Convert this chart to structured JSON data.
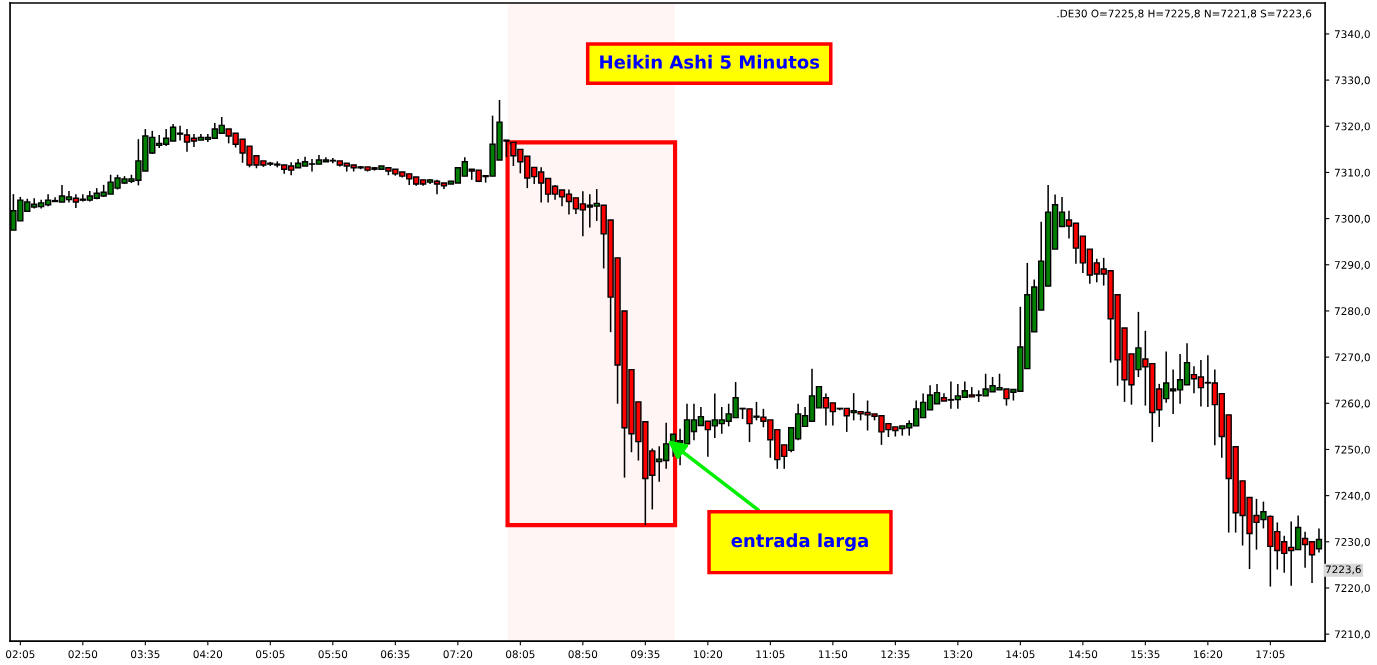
{
  "chart_data": {
    "type": "candlestick",
    "title": "Heikin Ashi 5 Minutos",
    "subtitle": ".DE30 O=7225,8 H=7225,8 N=7221,8 S=7223,6",
    "colors": [
      "#008000",
      "#008000",
      "#008000",
      "#008000",
      "#008000",
      "#008000",
      "#008000",
      "#008000",
      "#008000",
      "#ff0000",
      "#008000",
      "#008000",
      "#008000",
      "#008000",
      "#008000",
      "#008000",
      "#008000",
      "#008000",
      "#008000",
      "#008000",
      "#008000",
      "#008000",
      "#008000",
      "#008000",
      "#008000",
      "#ff0000",
      "#ff0000",
      "#008000",
      "#008000",
      "#008000",
      "#008000",
      "#ff0000",
      "#ff0000",
      "#ff0000",
      "#ff0000",
      "#ff0000",
      "#ff0000",
      "#008000",
      "#ff0000",
      "#ff0000",
      "#ff0000",
      "#008000",
      "#008000",
      "#008000",
      "#008000",
      "#008000",
      "#008000",
      "#ff0000",
      "#ff0000",
      "#ff0000",
      "#ff0000",
      "#ff0000",
      "#ff0000",
      "#008000",
      "#ff0000",
      "#ff0000",
      "#ff0000",
      "#ff0000",
      "#ff0000",
      "#ff0000",
      "#008000",
      "#ff0000",
      "#ff0000",
      "#008000",
      "#008000",
      "#008000",
      "#ff0000",
      "#ff0000",
      "#008000",
      "#008000",
      "#008000",
      "#008000",
      "#ff0000",
      "#ff0000",
      "#ff0000",
      "#ff0000",
      "#ff0000",
      "#ff0000",
      "#ff0000",
      "#ff0000",
      "#ff0000",
      "#ff0000",
      "#ff0000",
      "#008000",
      "#008000",
      "#ff0000",
      "#ff0000",
      "#ff0000",
      "#ff0000",
      "#ff0000",
      "#ff0000",
      "#ff0000",
      "#ff0000",
      "#008000",
      "#008000",
      "#008000",
      "#008000",
      "#008000",
      "#008000",
      "#008000",
      "#ff0000",
      "#008000",
      "#008000",
      "#008000",
      "#008000",
      "#008000",
      "#ff0000",
      "#ff0000",
      "#ff0000",
      "#ff0000",
      "#ff0000",
      "#ff0000",
      "#008000",
      "#008000",
      "#008000",
      "#008000",
      "#008000",
      "#ff0000",
      "#ff0000",
      "#ff0000",
      "#ff0000",
      "#008000",
      "#ff0000",
      "#ff0000",
      "#ff0000",
      "#ff0000",
      "#ff0000",
      "#ff0000",
      "#008000",
      "#008000",
      "#008000",
      "#008000",
      "#008000",
      "#008000",
      "#ff0000",
      "#008000",
      "#008000",
      "#008000",
      "#ff0000",
      "#008000",
      "#008000",
      "#008000",
      "#008000",
      "#ff0000",
      "#008000",
      "#008000",
      "#008000",
      "#008000",
      "#008000",
      "#008000",
      "#008000",
      "#008000",
      "#ff0000",
      "#ff0000",
      "#ff0000",
      "#ff0000",
      "#ff0000",
      "#ff0000",
      "#ff0000",
      "#ff0000",
      "#ff0000",
      "#ff0000",
      "#008000",
      "#ff0000",
      "#ff0000",
      "#ff0000",
      "#008000",
      "#008000",
      "#008000",
      "#008000",
      "#ff0000",
      "#ff0000",
      "#ff0000",
      "#ff0000",
      "#ff0000",
      "#ff0000",
      "#ff0000",
      "#ff0000",
      "#ff0000",
      "#ff0000",
      "#008000",
      "#ff0000",
      "#ff0000",
      "#ff0000",
      "#ff0000",
      "#008000",
      "#ff0000",
      "#ff0000",
      "#008000"
    ],
    "x": [
      2.0,
      2.0833,
      2.1667,
      2.25,
      2.3333,
      2.4167,
      2.5,
      2.5833,
      2.6667,
      2.75,
      2.8333,
      2.9167,
      3.0,
      3.0833,
      3.1667,
      3.25,
      3.3333,
      3.4167,
      3.5,
      3.5833,
      3.6667,
      3.75,
      3.8333,
      3.9167,
      4.0,
      4.0833,
      4.1667,
      4.25,
      4.3333,
      4.4167,
      4.5,
      4.5833,
      4.6667,
      4.75,
      4.8333,
      4.9167,
      5.0,
      5.0833,
      5.1667,
      5.25,
      5.3333,
      5.4167,
      5.5,
      5.5833,
      5.6667,
      5.75,
      5.8333,
      5.9167,
      6.0,
      6.0833,
      6.1667,
      6.25,
      6.3333,
      6.4167,
      6.5,
      6.5833,
      6.6667,
      6.75,
      6.8333,
      6.9167,
      7.0,
      7.0833,
      7.1667,
      7.25,
      7.3333,
      7.4167,
      7.5,
      7.5833,
      7.6667,
      7.75,
      7.8333,
      7.9167,
      8.0,
      8.0833,
      8.1667,
      8.25,
      8.3333,
      8.4167,
      8.5,
      8.5833,
      8.6667,
      8.75,
      8.8333,
      8.9167,
      9.0,
      9.0833,
      9.1667,
      9.25,
      9.3333,
      9.4167,
      9.5,
      9.5833,
      9.6667,
      9.75,
      9.8333,
      9.9167,
      10.0,
      10.0833,
      10.1667,
      10.25,
      10.3333,
      10.4167,
      10.5,
      10.5833,
      10.6667,
      10.75,
      10.8333,
      10.9167,
      11.0,
      11.0833,
      11.1667,
      11.25,
      11.3333,
      11.4167,
      11.5,
      11.5833,
      11.6667,
      11.75,
      11.8333,
      11.9167,
      12.0,
      12.0833,
      12.1667,
      12.25,
      12.3333,
      12.4167,
      12.5,
      12.5833,
      12.6667,
      12.75,
      12.8333,
      12.9167,
      13.0,
      13.0833,
      13.1667,
      13.25,
      13.3333,
      13.4167,
      13.5,
      13.5833,
      13.6667,
      13.75,
      13.8333,
      13.9167,
      14.0,
      14.0833,
      14.1667,
      14.25,
      14.3333,
      14.4167,
      14.5,
      14.5833,
      14.6667,
      14.75,
      14.8333,
      14.9167,
      15.0,
      15.0833,
      15.1667,
      15.25,
      15.3333,
      15.4167,
      15.5,
      15.5833,
      15.6667,
      15.75,
      15.8333,
      15.9167,
      16.0,
      16.0833,
      16.1667,
      16.25,
      16.3333,
      16.4167,
      16.5,
      16.5833,
      16.6667,
      16.75,
      16.8333,
      16.9167,
      17.0,
      17.0833,
      17.1667,
      17.25,
      17.3333,
      17.4167,
      17.5,
      17.5833,
      17.6667
    ],
    "ohlc": [
      [
        7297.5,
        7305.3,
        7297.5,
        7301.7
      ],
      [
        7299.5,
        7304.7,
        7299.5,
        7304.0
      ],
      [
        7301.6,
        7304.3,
        7301.6,
        7303.6
      ],
      [
        7302.5,
        7304.4,
        7302.2,
        7303.1
      ],
      [
        7302.6,
        7304.1,
        7302.2,
        7303.4
      ],
      [
        7303.0,
        7305.3,
        7302.7,
        7304.0
      ],
      [
        7303.7,
        7304.6,
        7303.7,
        7303.9
      ],
      [
        7303.6,
        7307.3,
        7303.6,
        7304.9
      ],
      [
        7304.1,
        7306.0,
        7303.5,
        7304.7
      ],
      [
        7304.4,
        7305.3,
        7302.3,
        7303.6
      ],
      [
        7304.0,
        7305.3,
        7303.7,
        7304.2
      ],
      [
        7304.0,
        7306.0,
        7303.7,
        7304.9
      ],
      [
        7304.4,
        7306.6,
        7304.2,
        7305.5
      ],
      [
        7304.9,
        7307.3,
        7304.7,
        7305.7
      ],
      [
        7305.3,
        7309.5,
        7305.3,
        7307.9
      ],
      [
        7306.6,
        7309.5,
        7306.3,
        7308.8
      ],
      [
        7307.7,
        7309.2,
        7307.5,
        7308.6
      ],
      [
        7308.1,
        7309.5,
        7307.7,
        7308.6
      ],
      [
        7308.3,
        7317.2,
        7307.2,
        7312.5
      ],
      [
        7310.3,
        7319.4,
        7310.3,
        7317.9
      ],
      [
        7314.2,
        7319.0,
        7314.0,
        7317.6
      ],
      [
        7315.9,
        7318.1,
        7315.3,
        7316.3
      ],
      [
        7316.1,
        7319.4,
        7315.7,
        7317.4
      ],
      [
        7316.8,
        7320.5,
        7316.8,
        7319.8
      ],
      [
        7318.3,
        7320.1,
        7316.9,
        7318.5
      ],
      [
        7318.1,
        7319.4,
        7314.5,
        7316.6
      ],
      [
        7317.4,
        7318.3,
        7315.5,
        7316.8
      ],
      [
        7317.0,
        7318.3,
        7317.0,
        7317.6
      ],
      [
        7317.2,
        7318.3,
        7316.6,
        7317.6
      ],
      [
        7317.4,
        7320.7,
        7317.4,
        7319.4
      ],
      [
        7318.5,
        7322.0,
        7318.5,
        7320.2
      ],
      [
        7319.4,
        7319.4,
        7316.3,
        7317.9
      ],
      [
        7318.5,
        7318.5,
        7315.4,
        7316.1
      ],
      [
        7317.2,
        7317.2,
        7312.1,
        7314.2
      ],
      [
        7315.7,
        7315.7,
        7311.1,
        7311.6
      ],
      [
        7313.6,
        7313.6,
        7310.9,
        7311.6
      ],
      [
        7312.5,
        7312.5,
        7311.2,
        7311.6
      ],
      [
        7311.8,
        7312.3,
        7311.4,
        7312.0
      ],
      [
        7311.8,
        7312.4,
        7311.1,
        7311.6
      ],
      [
        7311.6,
        7311.6,
        7309.7,
        7310.7
      ],
      [
        7311.4,
        7312.2,
        7309.4,
        7310.5
      ],
      [
        7311.0,
        7312.9,
        7311.0,
        7312.0
      ],
      [
        7311.4,
        7313.4,
        7311.4,
        7312.3
      ],
      [
        7311.8,
        7312.9,
        7310.2,
        7311.8
      ],
      [
        7311.8,
        7313.8,
        7311.8,
        7312.7
      ],
      [
        7312.3,
        7313.3,
        7312.3,
        7312.7
      ],
      [
        7312.5,
        7313.1,
        7312.0,
        7312.6
      ],
      [
        7312.5,
        7312.5,
        7311.3,
        7311.6
      ],
      [
        7312.0,
        7312.0,
        7310.2,
        7311.4
      ],
      [
        7311.6,
        7311.6,
        7310.2,
        7311.0
      ],
      [
        7311.2,
        7311.4,
        7310.7,
        7311.0
      ],
      [
        7311.2,
        7311.2,
        7310.2,
        7310.5
      ],
      [
        7311.0,
        7311.2,
        7310.4,
        7310.7
      ],
      [
        7310.7,
        7311.4,
        7310.7,
        7311.4
      ],
      [
        7311.0,
        7311.0,
        7309.4,
        7310.3
      ],
      [
        7310.7,
        7310.7,
        7309.3,
        7309.7
      ],
      [
        7310.1,
        7310.1,
        7308.9,
        7309.2
      ],
      [
        7309.7,
        7309.7,
        7307.3,
        7308.6
      ],
      [
        7309.0,
        7309.0,
        7307.1,
        7307.5
      ],
      [
        7308.4,
        7308.4,
        7307.1,
        7307.5
      ],
      [
        7307.9,
        7308.6,
        7307.5,
        7308.4
      ],
      [
        7308.1,
        7308.4,
        7305.3,
        7307.5
      ],
      [
        7307.7,
        7307.7,
        7306.4,
        7307.1
      ],
      [
        7307.5,
        7308.1,
        7307.5,
        7308.1
      ],
      [
        7307.7,
        7311.0,
        7307.7,
        7311.0
      ],
      [
        7309.2,
        7313.3,
        7309.2,
        7312.3
      ],
      [
        7310.7,
        7310.7,
        7308.4,
        7310.3
      ],
      [
        7310.5,
        7310.5,
        7307.9,
        7308.1
      ],
      [
        7309.1,
        7309.3,
        7307.8,
        7309.3
      ],
      [
        7309.2,
        7322.3,
        7309.2,
        7316.1
      ],
      [
        7312.7,
        7325.7,
        7312.7,
        7320.9
      ],
      [
        7316.8,
        7317.0,
        7313.3,
        7317.0
      ],
      [
        7316.5,
        7316.5,
        7311.4,
        7313.6
      ],
      [
        7315.0,
        7315.0,
        7309.8,
        7312.3
      ],
      [
        7313.5,
        7313.5,
        7306.6,
        7308.8
      ],
      [
        7311.1,
        7311.1,
        7307.5,
        7309.1
      ],
      [
        7310.1,
        7311.1,
        7303.5,
        7307.7
      ],
      [
        7308.7,
        7308.7,
        7303.5,
        7305.3
      ],
      [
        7307.0,
        7307.3,
        7304.1,
        7305.3
      ],
      [
        7306.2,
        7306.2,
        7302.7,
        7304.7
      ],
      [
        7305.3,
        7306.3,
        7300.9,
        7303.7
      ],
      [
        7304.5,
        7304.5,
        7301.0,
        7302.1
      ],
      [
        7303.2,
        7305.9,
        7296.2,
        7301.9
      ],
      [
        7302.5,
        7305.3,
        7298.1,
        7302.9
      ],
      [
        7302.7,
        7306.4,
        7299.5,
        7303.3
      ],
      [
        7302.9,
        7302.9,
        7289.2,
        7296.7
      ],
      [
        7299.7,
        7299.7,
        7275.4,
        7283.0
      ],
      [
        7291.5,
        7291.5,
        7259.9,
        7268.3
      ],
      [
        7280.0,
        7280.0,
        7243.9,
        7254.7
      ],
      [
        7267.3,
        7267.3,
        7249.4,
        7253.4
      ],
      [
        7260.3,
        7260.3,
        7247.6,
        7251.7
      ],
      [
        7256.0,
        7256.0,
        7233.6,
        7243.7
      ],
      [
        7249.7,
        7250.2,
        7237.0,
        7244.4
      ],
      [
        7247.4,
        7250.7,
        7243.0,
        7247.9
      ],
      [
        7247.6,
        7255.8,
        7245.8,
        7251.2
      ],
      [
        7251.2,
        7253.3,
        7248.4,
        7253.3
      ],
      [
        7251.5,
        7254.5,
        7246.6,
        7251.9
      ],
      [
        7251.2,
        7259.9,
        7251.2,
        7256.4
      ],
      [
        7253.9,
        7259.9,
        7252.0,
        7256.4
      ],
      [
        7255.2,
        7259.2,
        7255.2,
        7257.1
      ],
      [
        7256.1,
        7256.1,
        7248.4,
        7254.3
      ],
      [
        7255.1,
        7262.1,
        7252.5,
        7256.4
      ],
      [
        7255.6,
        7259.2,
        7253.4,
        7256.4
      ],
      [
        7256.1,
        7259.9,
        7255.0,
        7257.7
      ],
      [
        7256.9,
        7264.6,
        7256.9,
        7261.2
      ],
      [
        7258.8,
        7258.9,
        7256.6,
        7258.9
      ],
      [
        7258.8,
        7258.8,
        7251.6,
        7255.6
      ],
      [
        7257.2,
        7260.3,
        7256.3,
        7257.0
      ],
      [
        7257.0,
        7258.8,
        7254.8,
        7256.1
      ],
      [
        7256.4,
        7256.4,
        7248.2,
        7252.1
      ],
      [
        7254.3,
        7254.3,
        7245.8,
        7247.8
      ],
      [
        7251.0,
        7251.0,
        7245.8,
        7248.5
      ],
      [
        7249.8,
        7254.7,
        7249.4,
        7254.7
      ],
      [
        7252.3,
        7259.9,
        7252.0,
        7257.7
      ],
      [
        7255.0,
        7259.2,
        7255.0,
        7257.3
      ],
      [
        7256.1,
        7267.5,
        7256.1,
        7261.6
      ],
      [
        7259.0,
        7263.6,
        7259.0,
        7263.6
      ],
      [
        7261.2,
        7262.1,
        7255.2,
        7259.0
      ],
      [
        7260.1,
        7260.1,
        7255.2,
        7258.2
      ],
      [
        7258.9,
        7259.0,
        7258.5,
        7258.8
      ],
      [
        7258.9,
        7258.9,
        7253.8,
        7257.3
      ],
      [
        7258.0,
        7262.2,
        7256.3,
        7258.4
      ],
      [
        7258.2,
        7258.2,
        7256.3,
        7257.7
      ],
      [
        7258.0,
        7260.6,
        7254.1,
        7257.5
      ],
      [
        7257.7,
        7257.7,
        7256.3,
        7257.2
      ],
      [
        7257.3,
        7257.3,
        7251.0,
        7253.8
      ],
      [
        7255.6,
        7255.6,
        7252.7,
        7254.3
      ],
      [
        7254.9,
        7254.9,
        7252.8,
        7254.1
      ],
      [
        7254.5,
        7255.1,
        7253.0,
        7255.1
      ],
      [
        7254.7,
        7256.3,
        7253.0,
        7255.6
      ],
      [
        7255.1,
        7260.6,
        7255.1,
        7258.8
      ],
      [
        7256.9,
        7262.1,
        7256.9,
        7260.2
      ],
      [
        7258.6,
        7263.9,
        7258.6,
        7261.8
      ],
      [
        7259.9,
        7264.2,
        7259.9,
        7262.3
      ],
      [
        7261.2,
        7262.2,
        7260.5,
        7260.5
      ],
      [
        7260.7,
        7264.7,
        7258.8,
        7260.8
      ],
      [
        7260.8,
        7264.2,
        7258.8,
        7261.6
      ],
      [
        7261.3,
        7264.7,
        7261.3,
        7262.7
      ],
      [
        7261.8,
        7263.5,
        7261.4,
        7261.4
      ],
      [
        7261.7,
        7262.8,
        7260.3,
        7261.8
      ],
      [
        7261.6,
        7266.4,
        7261.6,
        7263.1
      ],
      [
        7262.5,
        7265.7,
        7262.5,
        7263.8
      ],
      [
        7262.9,
        7266.4,
        7262.9,
        7263.4
      ],
      [
        7263.1,
        7263.1,
        7259.5,
        7261.0
      ],
      [
        7262.4,
        7263.0,
        7260.6,
        7263.0
      ],
      [
        7262.6,
        7280.9,
        7262.6,
        7272.2
      ],
      [
        7267.5,
        7290.4,
        7267.5,
        7283.5
      ],
      [
        7275.5,
        7286.8,
        7275.5,
        7285.2
      ],
      [
        7280.2,
        7299.3,
        7280.2,
        7290.8
      ],
      [
        7285.4,
        7307.3,
        7285.4,
        7301.4
      ],
      [
        7293.4,
        7305.2,
        7293.4,
        7303.0
      ],
      [
        7298.3,
        7304.7,
        7298.3,
        7301.4
      ],
      [
        7299.7,
        7301.7,
        7295.7,
        7298.4
      ],
      [
        7299.0,
        7299.0,
        7290.2,
        7293.6
      ],
      [
        7296.2,
        7296.2,
        7288.2,
        7290.4
      ],
      [
        7293.4,
        7293.4,
        7285.9,
        7287.8
      ],
      [
        7290.4,
        7291.3,
        7286.2,
        7288.0
      ],
      [
        7289.1,
        7291.5,
        7285.5,
        7288.0
      ],
      [
        7288.7,
        7288.7,
        7268.8,
        7278.3
      ],
      [
        7283.5,
        7283.5,
        7263.8,
        7269.4
      ],
      [
        7276.3,
        7276.3,
        7260.3,
        7265.1
      ],
      [
        7270.7,
        7270.7,
        7259.7,
        7264.0
      ],
      [
        7267.3,
        7279.8,
        7265.7,
        7272.0
      ],
      [
        7269.6,
        7275.7,
        7259.5,
        7267.9
      ],
      [
        7268.6,
        7268.6,
        7251.6,
        7258.0
      ],
      [
        7263.1,
        7264.2,
        7254.9,
        7258.6
      ],
      [
        7261.0,
        7271.2,
        7260.1,
        7264.4
      ],
      [
        7262.7,
        7267.3,
        7257.7,
        7263.1
      ],
      [
        7262.9,
        7270.7,
        7259.9,
        7265.1
      ],
      [
        7264.0,
        7273.0,
        7264.0,
        7268.8
      ],
      [
        7266.2,
        7268.0,
        7262.2,
        7265.3
      ],
      [
        7265.7,
        7269.4,
        7259.3,
        7263.4
      ],
      [
        7264.5,
        7270.4,
        7259.2,
        7264.4
      ],
      [
        7264.4,
        7267.3,
        7250.9,
        7259.7
      ],
      [
        7262.1,
        7262.1,
        7248.2,
        7252.8
      ],
      [
        7257.5,
        7257.5,
        7232.0,
        7243.7
      ],
      [
        7250.6,
        7250.6,
        7232.0,
        7236.3
      ],
      [
        7243.2,
        7243.2,
        7229.2,
        7235.7
      ],
      [
        7239.6,
        7239.6,
        7224.1,
        7231.8
      ],
      [
        7235.7,
        7239.3,
        7228.3,
        7234.2
      ],
      [
        7234.8,
        7238.7,
        7232.9,
        7236.5
      ],
      [
        7235.5,
        7235.7,
        7220.3,
        7229.0
      ],
      [
        7232.2,
        7234.2,
        7224.0,
        7228.1
      ],
      [
        7230.0,
        7231.3,
        7223.3,
        7227.5
      ],
      [
        7228.8,
        7234.4,
        7220.5,
        7228.1
      ],
      [
        7228.3,
        7235.7,
        7228.3,
        7233.1
      ],
      [
        7230.7,
        7232.2,
        7224.4,
        7229.4
      ],
      [
        7230.0,
        7230.0,
        7221.1,
        7227.2
      ],
      [
        7228.5,
        7232.9,
        7227.7,
        7230.5
      ]
    ],
    "xlim": [
      1.96,
      17.74
    ],
    "ylim": [
      7208.5,
      7346.7
    ],
    "xticks": [
      {
        "value": 2.0833,
        "label": "02:05"
      },
      {
        "value": 2.8333,
        "label": "02:50"
      },
      {
        "value": 3.5833,
        "label": "03:35"
      },
      {
        "value": 4.3333,
        "label": "04:20"
      },
      {
        "value": 5.0833,
        "label": "05:05"
      },
      {
        "value": 5.8333,
        "label": "05:50"
      },
      {
        "value": 6.5833,
        "label": "06:35"
      },
      {
        "value": 7.3333,
        "label": "07:20"
      },
      {
        "value": 8.0833,
        "label": "08:05"
      },
      {
        "value": 8.8333,
        "label": "08:50"
      },
      {
        "value": 9.5833,
        "label": "09:35"
      },
      {
        "value": 10.3333,
        "label": "10:20"
      },
      {
        "value": 11.0833,
        "label": "11:05"
      },
      {
        "value": 11.8333,
        "label": "11:50"
      },
      {
        "value": 12.5833,
        "label": "12:35"
      },
      {
        "value": 13.3333,
        "label": "13:20"
      },
      {
        "value": 14.0833,
        "label": "14:05"
      },
      {
        "value": 14.8333,
        "label": "14:50"
      },
      {
        "value": 15.5833,
        "label": "15:35"
      },
      {
        "value": 16.3333,
        "label": "16:20"
      },
      {
        "value": 17.0833,
        "label": "17:05"
      }
    ],
    "yticks": [
      {
        "value": 7210,
        "label": "7210,0"
      },
      {
        "value": 7220,
        "label": "7220,0"
      },
      {
        "value": 7230,
        "label": "7230,0"
      },
      {
        "value": 7240,
        "label": "7240,0"
      },
      {
        "value": 7250,
        "label": "7250,0"
      },
      {
        "value": 7260,
        "label": "7260,0"
      },
      {
        "value": 7270,
        "label": "7270,0"
      },
      {
        "value": 7280,
        "label": "7280,0"
      },
      {
        "value": 7290,
        "label": "7290,0"
      },
      {
        "value": 7300,
        "label": "7300,0"
      },
      {
        "value": 7310,
        "label": "7310,0"
      },
      {
        "value": 7320,
        "label": "7320,0"
      },
      {
        "value": 7330,
        "label": "7330,0"
      },
      {
        "value": 7340,
        "label": "7340,0"
      }
    ],
    "bands": [
      {
        "axis": "x",
        "from": 7.93,
        "to": 9.94,
        "color": "#ff0000"
      }
    ],
    "annotations": [
      {
        "text": "entrada larga",
        "x": 9.85,
        "y": 7252
      },
      "7223,6"
    ],
    "grid": false,
    "legend": false
  }
}
